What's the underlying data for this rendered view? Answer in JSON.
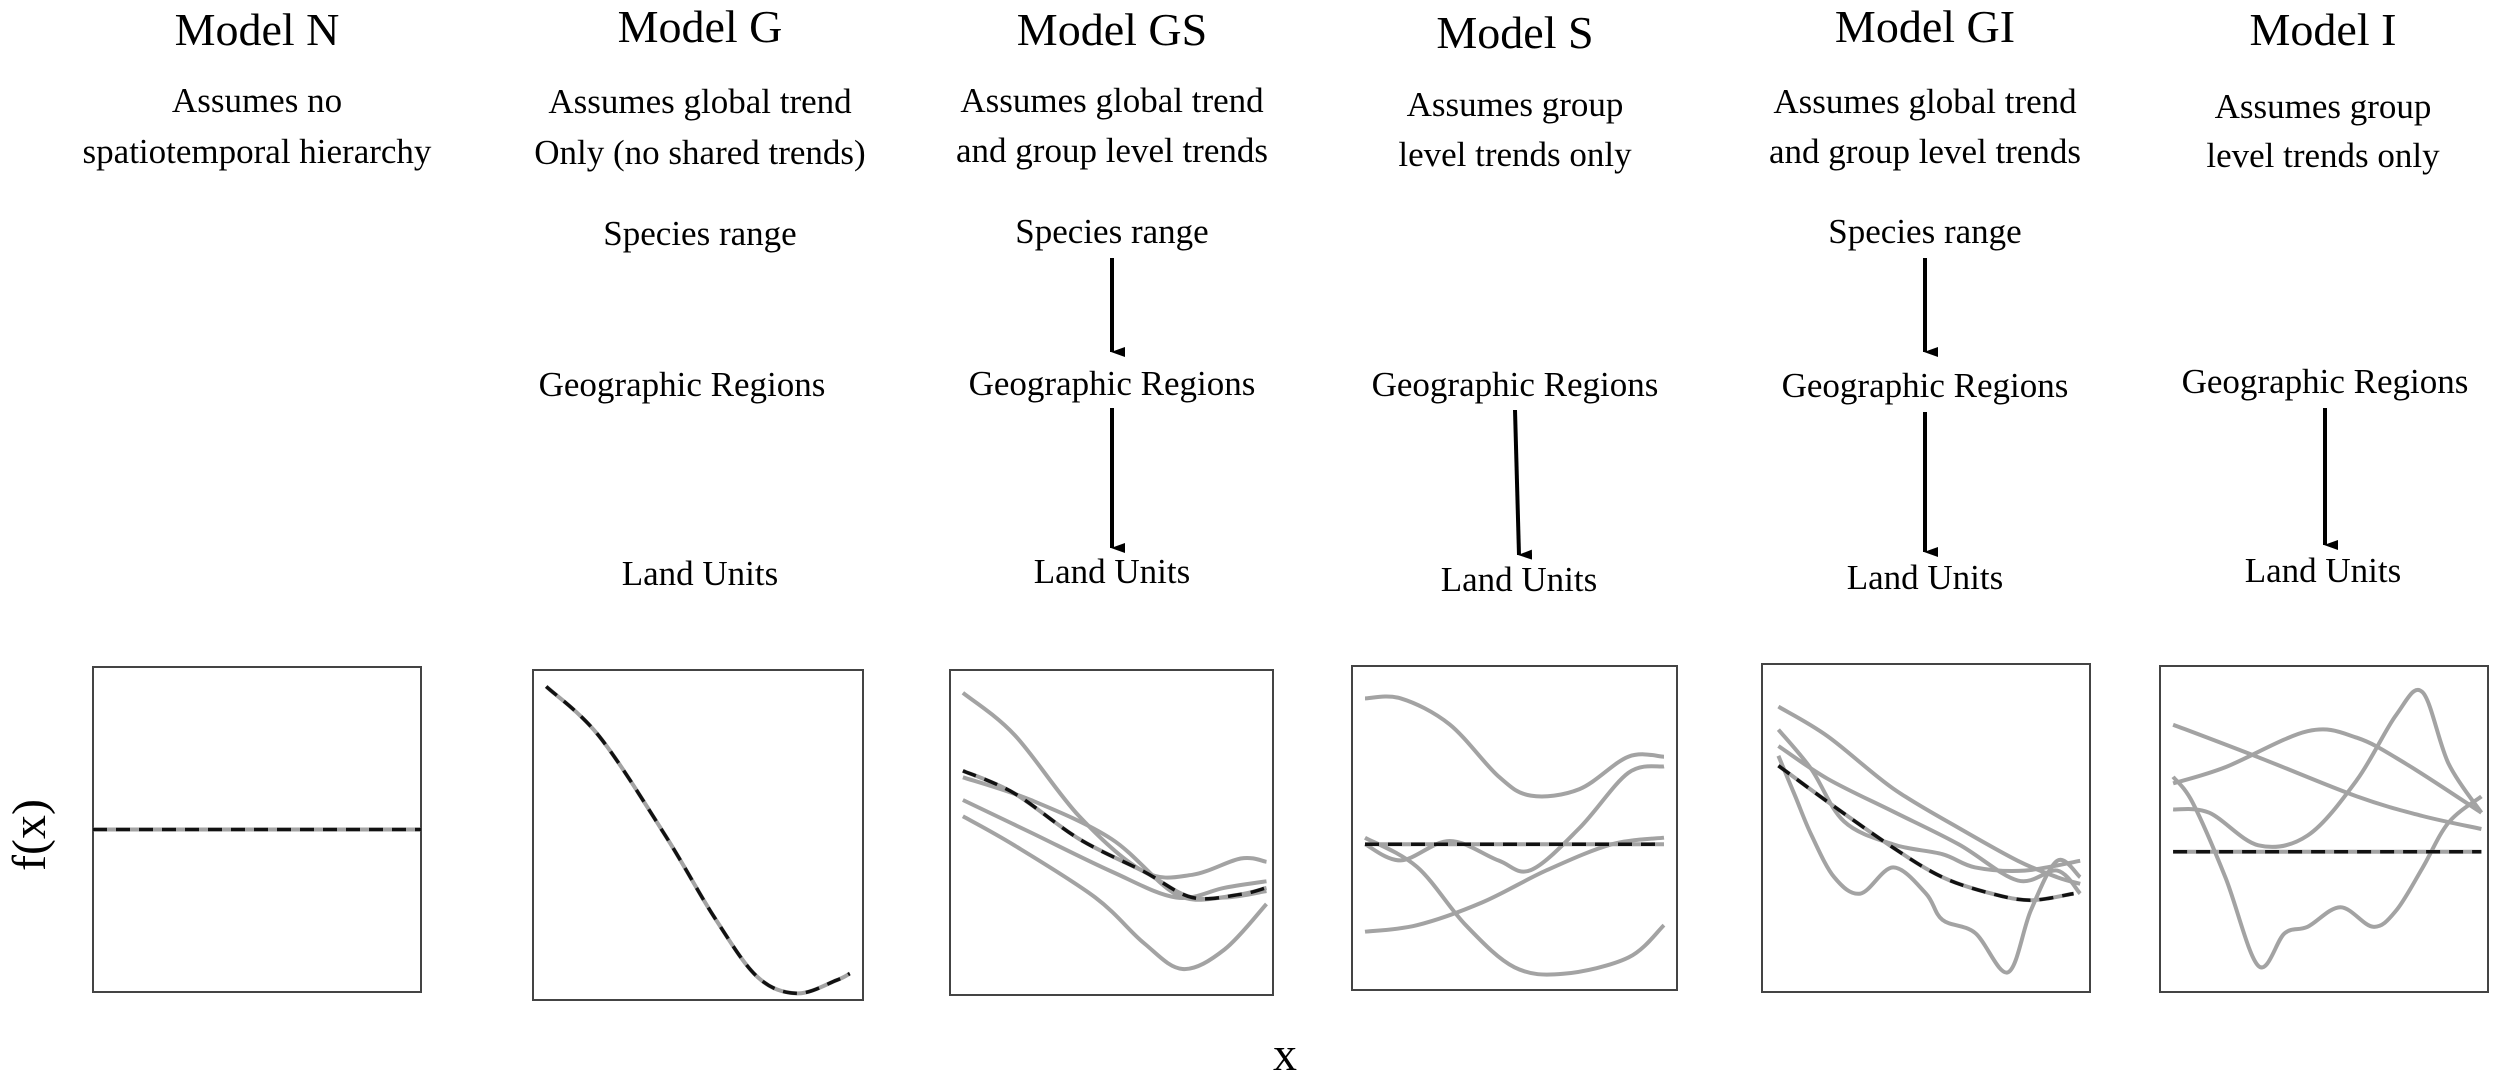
{
  "models": [
    {
      "title": "Model N",
      "desc": [
        "Assumes no",
        "spatiotemporal hierarchy"
      ],
      "levels": {
        "range": "",
        "regions": "",
        "units": ""
      },
      "arrow_range_to_regions": false,
      "arrow_regions_to_units": false,
      "global_curve": [
        [
          0,
          0.5
        ],
        [
          1,
          0.5
        ]
      ],
      "group_curves": []
    },
    {
      "title": "Model G",
      "desc": [
        "Assumes global trend",
        "Only (no shared trends)"
      ],
      "levels": {
        "range": "Species range",
        "regions": "Geographic Regions",
        "units": "Land Units"
      },
      "arrow_range_to_regions": false,
      "arrow_regions_to_units": false,
      "global_curve": [
        [
          0.04,
          0.95
        ],
        [
          0.2,
          0.8
        ],
        [
          0.4,
          0.5
        ],
        [
          0.55,
          0.25
        ],
        [
          0.68,
          0.07
        ],
        [
          0.8,
          0.02
        ],
        [
          0.92,
          0.06
        ],
        [
          0.96,
          0.08
        ]
      ],
      "group_curves": []
    },
    {
      "title": "Model GS",
      "desc": [
        "Assumes global trend",
        "and group level trends"
      ],
      "levels": {
        "range": "Species range",
        "regions": "Geographic Regions",
        "units": "Land Units"
      },
      "arrow_range_to_regions": true,
      "arrow_regions_to_units": true,
      "global_curve": [
        [
          0.04,
          0.69
        ],
        [
          0.2,
          0.62
        ],
        [
          0.4,
          0.48
        ],
        [
          0.6,
          0.38
        ],
        [
          0.75,
          0.3
        ],
        [
          0.9,
          0.31
        ],
        [
          0.98,
          0.33
        ]
      ],
      "group_curves": [
        [
          [
            0.04,
            0.93
          ],
          [
            0.2,
            0.8
          ],
          [
            0.4,
            0.55
          ],
          [
            0.6,
            0.38
          ],
          [
            0.75,
            0.37
          ],
          [
            0.9,
            0.42
          ],
          [
            0.98,
            0.41
          ]
        ],
        [
          [
            0.04,
            0.67
          ],
          [
            0.25,
            0.6
          ],
          [
            0.5,
            0.48
          ],
          [
            0.7,
            0.31
          ],
          [
            0.85,
            0.3
          ],
          [
            0.98,
            0.32
          ]
        ],
        [
          [
            0.04,
            0.6
          ],
          [
            0.25,
            0.5
          ],
          [
            0.5,
            0.38
          ],
          [
            0.7,
            0.3
          ],
          [
            0.85,
            0.33
          ],
          [
            0.98,
            0.35
          ]
        ],
        [
          [
            0.04,
            0.55
          ],
          [
            0.2,
            0.46
          ],
          [
            0.45,
            0.3
          ],
          [
            0.6,
            0.16
          ],
          [
            0.72,
            0.08
          ],
          [
            0.85,
            0.14
          ],
          [
            0.98,
            0.28
          ]
        ]
      ]
    },
    {
      "title": "Model S",
      "desc": [
        "Assumes group",
        "level trends only"
      ],
      "levels": {
        "range": "",
        "regions": "Geographic Regions",
        "units": "Land Units"
      },
      "arrow_range_to_regions": false,
      "arrow_regions_to_units": true,
      "global_curve": [
        [
          0.04,
          0.45
        ],
        [
          0.96,
          0.45
        ]
      ],
      "group_curves": [
        [
          [
            0.04,
            0.9
          ],
          [
            0.15,
            0.9
          ],
          [
            0.3,
            0.82
          ],
          [
            0.45,
            0.66
          ],
          [
            0.55,
            0.6
          ],
          [
            0.7,
            0.62
          ],
          [
            0.85,
            0.72
          ],
          [
            0.96,
            0.72
          ]
        ],
        [
          [
            0.04,
            0.45
          ],
          [
            0.15,
            0.4
          ],
          [
            0.3,
            0.46
          ],
          [
            0.45,
            0.4
          ],
          [
            0.55,
            0.37
          ],
          [
            0.7,
            0.5
          ],
          [
            0.85,
            0.67
          ],
          [
            0.96,
            0.69
          ]
        ],
        [
          [
            0.04,
            0.47
          ],
          [
            0.2,
            0.38
          ],
          [
            0.35,
            0.2
          ],
          [
            0.5,
            0.07
          ],
          [
            0.65,
            0.05
          ],
          [
            0.85,
            0.1
          ],
          [
            0.96,
            0.2
          ]
        ],
        [
          [
            0.04,
            0.18
          ],
          [
            0.2,
            0.2
          ],
          [
            0.4,
            0.27
          ],
          [
            0.6,
            0.37
          ],
          [
            0.8,
            0.45
          ],
          [
            0.96,
            0.47
          ]
        ]
      ]
    },
    {
      "title": "Model GI",
      "desc": [
        "Assumes global trend",
        "and group level trends"
      ],
      "levels": {
        "range": "Species range",
        "regions": "Geographic Regions",
        "units": "Land Units"
      },
      "arrow_range_to_regions": true,
      "arrow_regions_to_units": true,
      "global_curve": [
        [
          0.05,
          0.69
        ],
        [
          0.2,
          0.58
        ],
        [
          0.4,
          0.44
        ],
        [
          0.55,
          0.35
        ],
        [
          0.7,
          0.3
        ],
        [
          0.82,
          0.28
        ],
        [
          0.95,
          0.3
        ]
      ],
      "group_curves": [
        [
          [
            0.05,
            0.87
          ],
          [
            0.2,
            0.78
          ],
          [
            0.4,
            0.62
          ],
          [
            0.6,
            0.5
          ],
          [
            0.78,
            0.4
          ],
          [
            0.9,
            0.35
          ],
          [
            0.97,
            0.33
          ]
        ],
        [
          [
            0.05,
            0.8
          ],
          [
            0.15,
            0.68
          ],
          [
            0.25,
            0.52
          ],
          [
            0.4,
            0.45
          ],
          [
            0.55,
            0.42
          ],
          [
            0.65,
            0.38
          ],
          [
            0.8,
            0.37
          ],
          [
            0.97,
            0.4
          ]
        ],
        [
          [
            0.05,
            0.75
          ],
          [
            0.2,
            0.65
          ],
          [
            0.4,
            0.55
          ],
          [
            0.6,
            0.45
          ],
          [
            0.78,
            0.34
          ],
          [
            0.9,
            0.37
          ],
          [
            0.97,
            0.3
          ]
        ],
        [
          [
            0.05,
            0.72
          ],
          [
            0.1,
            0.6
          ],
          [
            0.15,
            0.48
          ],
          [
            0.22,
            0.35
          ],
          [
            0.3,
            0.3
          ],
          [
            0.4,
            0.38
          ],
          [
            0.5,
            0.3
          ],
          [
            0.55,
            0.22
          ],
          [
            0.65,
            0.18
          ],
          [
            0.75,
            0.06
          ],
          [
            0.82,
            0.25
          ],
          [
            0.9,
            0.4
          ],
          [
            0.97,
            0.35
          ]
        ]
      ]
    },
    {
      "title": "Model I",
      "desc": [
        "Assumes group",
        "level trends only"
      ],
      "levels": {
        "range": "",
        "regions": "Geographic Regions",
        "units": "Land Units"
      },
      "arrow_range_to_regions": false,
      "arrow_regions_to_units": true,
      "global_curve": [
        [
          0.04,
          0.43
        ],
        [
          0.98,
          0.43
        ]
      ],
      "group_curves": [
        [
          [
            0.04,
            0.82
          ],
          [
            0.3,
            0.72
          ],
          [
            0.6,
            0.6
          ],
          [
            0.8,
            0.54
          ],
          [
            0.98,
            0.5
          ]
        ],
        [
          [
            0.04,
            0.64
          ],
          [
            0.2,
            0.69
          ],
          [
            0.45,
            0.8
          ],
          [
            0.6,
            0.78
          ],
          [
            0.75,
            0.7
          ],
          [
            0.98,
            0.55
          ]
        ],
        [
          [
            0.04,
            0.66
          ],
          [
            0.1,
            0.58
          ],
          [
            0.2,
            0.35
          ],
          [
            0.3,
            0.08
          ],
          [
            0.38,
            0.18
          ],
          [
            0.45,
            0.2
          ],
          [
            0.55,
            0.26
          ],
          [
            0.65,
            0.2
          ],
          [
            0.72,
            0.25
          ],
          [
            0.8,
            0.38
          ],
          [
            0.88,
            0.52
          ],
          [
            0.98,
            0.6
          ]
        ],
        [
          [
            0.04,
            0.56
          ],
          [
            0.15,
            0.55
          ],
          [
            0.3,
            0.45
          ],
          [
            0.45,
            0.48
          ],
          [
            0.6,
            0.65
          ],
          [
            0.72,
            0.85
          ],
          [
            0.8,
            0.92
          ],
          [
            0.88,
            0.7
          ],
          [
            0.98,
            0.55
          ]
        ]
      ]
    }
  ],
  "axes": {
    "x_label": "x",
    "y_label": "f(x)"
  },
  "colors": {
    "group_curve": "#a3a3a3",
    "global_curve": "#111111",
    "frame": "#444444",
    "arrow": "#000000"
  }
}
